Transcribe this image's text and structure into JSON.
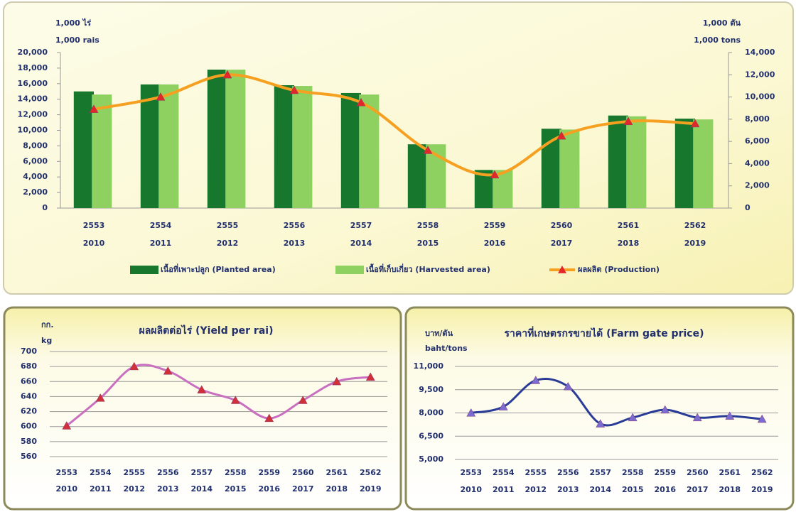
{
  "chart_data": [
    {
      "type": "combo",
      "categories": [
        "2553",
        "2554",
        "2555",
        "2556",
        "2557",
        "2558",
        "2559",
        "2560",
        "2561",
        "2562"
      ],
      "categories_ce": [
        "2010",
        "2011",
        "2012",
        "2013",
        "2014",
        "2015",
        "2016",
        "2017",
        "2018",
        "2019"
      ],
      "ylabel": [
        "1,000 ไร่",
        "1,000 rais"
      ],
      "y2label": [
        "1,000 ตัน",
        "1,000 tons"
      ],
      "ylim": [
        0,
        20000
      ],
      "yticks": [
        0,
        {
          "value": 2000,
          "label": "2,000"
        },
        {
          "value": 4000,
          "label": "4,000"
        },
        {
          "value": 6000,
          "label": "6,000"
        },
        {
          "value": 8000,
          "label": "8,000"
        },
        {
          "value": 10000,
          "label": "10,000"
        },
        {
          "value": 12000,
          "label": "12,000"
        },
        {
          "value": 14000,
          "label": "14,000"
        },
        {
          "value": 16000,
          "label": "16,000"
        },
        {
          "value": 18000,
          "label": "18,000"
        },
        {
          "value": 20000,
          "label": "20,000"
        }
      ],
      "y2lim": [
        0,
        14000
      ],
      "y2ticks": [
        0,
        {
          "value": 2000,
          "label": "2,000"
        },
        {
          "value": 4000,
          "label": "4,000"
        },
        {
          "value": 6000,
          "label": "6,000"
        },
        {
          "value": 8000,
          "label": "8,000"
        },
        {
          "value": 10000,
          "label": "10,000"
        },
        {
          "value": 12000,
          "label": "12,000"
        },
        {
          "value": 14000,
          "label": "14,000"
        }
      ],
      "grid": false,
      "legend": "bottom",
      "series": [
        {
          "name": "เนื้อที่เพาะปลูก (Planted area)",
          "mark": "bar",
          "color": "#17772c",
          "values": [
            15000,
            15900,
            17800,
            15800,
            14800,
            8200,
            4900,
            10200,
            11900,
            11500
          ]
        },
        {
          "name": "เนื้อที่เก็บเกี่ยว (Harvested area)",
          "mark": "bar",
          "color": "#8fd160",
          "values": [
            14600,
            15900,
            17800,
            15700,
            14600,
            8200,
            4900,
            10100,
            11800,
            11400
          ]
        },
        {
          "name": "ผลผลิต (Production)",
          "mark": "line",
          "axis": "y2",
          "color": "#f5a020",
          "marker_color": "#e3262a",
          "values": [
            8900,
            10000,
            12000,
            10600,
            9500,
            5200,
            3000,
            6500,
            7800,
            7600
          ]
        }
      ]
    },
    {
      "type": "line",
      "title": "ผลผลิตต่อไร่ (Yield per rai)",
      "categories": [
        "2553",
        "2554",
        "2555",
        "2556",
        "2557",
        "2558",
        "2559",
        "2560",
        "2561",
        "2562"
      ],
      "categories_ce": [
        "2010",
        "2011",
        "2012",
        "2013",
        "2014",
        "2015",
        "2016",
        "2017",
        "2018",
        "2019"
      ],
      "ylabel": [
        "กก.",
        "kg"
      ],
      "ylim": [
        560,
        700
      ],
      "yticks": [
        560,
        580,
        600,
        620,
        640,
        660,
        680,
        700
      ],
      "grid": true,
      "series": [
        {
          "color": "#c96fc0",
          "marker_color": "#d0303a",
          "values": [
            601,
            638,
            680,
            674,
            649,
            635,
            611,
            635,
            660,
            666
          ]
        }
      ]
    },
    {
      "type": "line",
      "title": "ราคาที่เกษตรกรขายได้ (Farm gate price)",
      "categories": [
        "2553",
        "2554",
        "2555",
        "2556",
        "2557",
        "2558",
        "2559",
        "2560",
        "2561",
        "2562"
      ],
      "categories_ce": [
        "2010",
        "2011",
        "2012",
        "2013",
        "2014",
        "2015",
        "2016",
        "2017",
        "2018",
        "2019"
      ],
      "ylabel": [
        "บาท/ตัน",
        "baht/tons"
      ],
      "ylim": [
        5000,
        11000
      ],
      "yticks": [
        {
          "value": 5000,
          "label": "5,000"
        },
        {
          "value": 6500,
          "label": "6,500"
        },
        {
          "value": 8000,
          "label": "8,000"
        },
        {
          "value": 9500,
          "label": "9,500"
        },
        {
          "value": 11000,
          "label": "11,000"
        }
      ],
      "grid": true,
      "series": [
        {
          "color": "#2a3c98",
          "marker_color": "#7a6cd0",
          "values": [
            8000,
            8400,
            10100,
            9700,
            7300,
            7700,
            8200,
            7700,
            7800,
            7600
          ]
        }
      ]
    }
  ]
}
